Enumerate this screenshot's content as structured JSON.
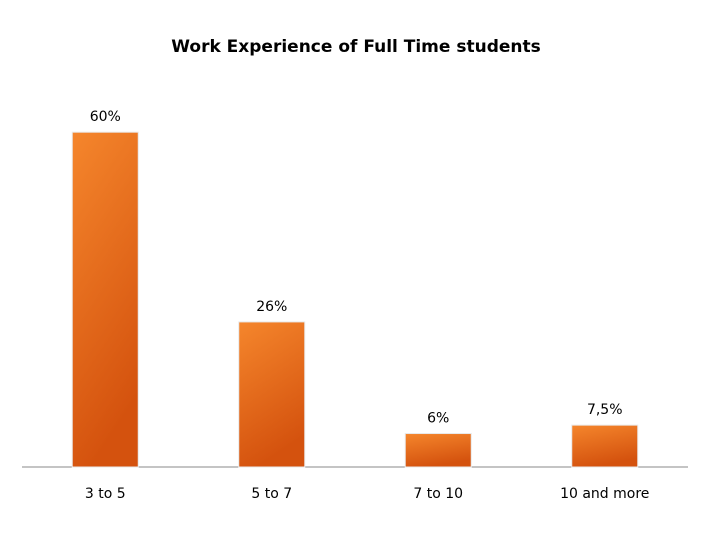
{
  "chart_data": {
    "type": "bar",
    "title": "Work Experience of Full Time students",
    "categories": [
      "3 to 5",
      "5 to 7",
      "7 to 10",
      "10 and more"
    ],
    "values": [
      60,
      26,
      6,
      7.5
    ],
    "value_labels": [
      "60%",
      "26%",
      "6%",
      "7,5%"
    ],
    "color": "#f5862c"
  }
}
